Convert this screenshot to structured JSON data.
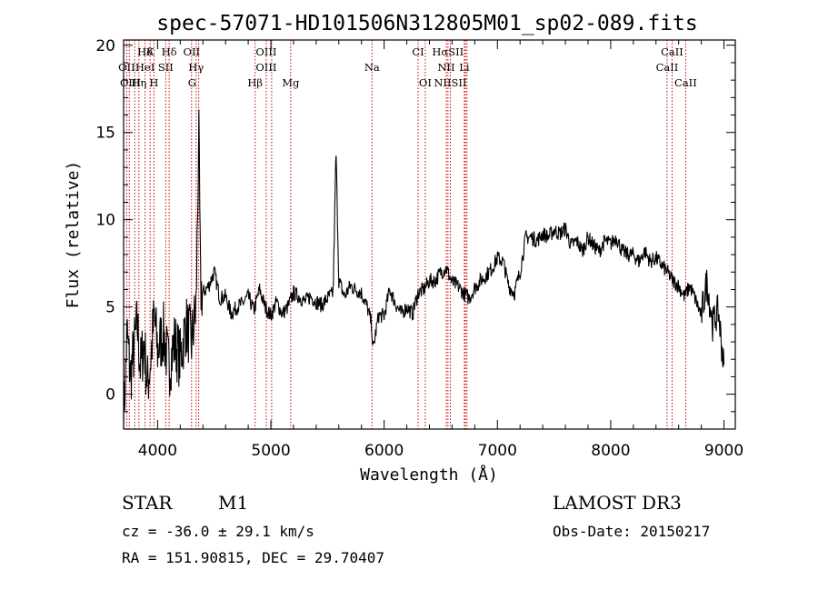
{
  "chart_data": {
    "type": "line",
    "title": "spec-57071-HD101506N312805M01_sp02-089.fits",
    "xlabel": "Wavelength (Å)",
    "ylabel": "Flux (relative)",
    "xlim": [
      3700,
      9100
    ],
    "ylim": [
      -2,
      20.3
    ],
    "x_ticks": [
      4000,
      5000,
      6000,
      7000,
      8000,
      9000
    ],
    "y_ticks": [
      0,
      5,
      10,
      15,
      20
    ],
    "grid": false,
    "line_color": "#000000",
    "marker_color": "#cc0000",
    "spectral_lines": [
      {
        "name": "Hδ",
        "x": 3889,
        "row": 0
      },
      {
        "name": "K",
        "x": 3934,
        "row": 0
      },
      {
        "name": "Hδ",
        "x": 4102,
        "row": 0
      },
      {
        "name": "OII",
        "x": 4300,
        "row": 0
      },
      {
        "name": "OIII",
        "x": 4959,
        "row": 0
      },
      {
        "name": "CI",
        "x": 6300,
        "row": 0
      },
      {
        "name": "HαSII",
        "x": 6563,
        "row": 0
      },
      {
        "name": "CaII",
        "x": 8542,
        "row": 0
      },
      {
        "name": "OII",
        "x": 3727,
        "row": 1
      },
      {
        "name": "HeI",
        "x": 3889,
        "row": 1
      },
      {
        "name": "SII",
        "x": 4072,
        "row": 1
      },
      {
        "name": "Hγ",
        "x": 4340,
        "row": 1
      },
      {
        "name": "OIII",
        "x": 4959,
        "row": 1
      },
      {
        "name": "Na",
        "x": 5893,
        "row": 1
      },
      {
        "name": "NII",
        "x": 6548,
        "row": 1
      },
      {
        "name": "Li",
        "x": 6708,
        "row": 1
      },
      {
        "name": "CaII",
        "x": 8498,
        "row": 1
      },
      {
        "name": "OIII",
        "x": 3760,
        "row": 2
      },
      {
        "name": "Hη",
        "x": 3835,
        "row": 2
      },
      {
        "name": "H",
        "x": 3968,
        "row": 2
      },
      {
        "name": "G",
        "x": 4305,
        "row": 2
      },
      {
        "name": "Hβ",
        "x": 4861,
        "row": 2
      },
      {
        "name": "Mg",
        "x": 5175,
        "row": 2
      },
      {
        "name": "OI",
        "x": 6363,
        "row": 2
      },
      {
        "name": "NIISII",
        "x": 6584,
        "row": 2
      },
      {
        "name": "CaII",
        "x": 8662,
        "row": 2
      }
    ],
    "marker_positions": [
      3727,
      3750,
      3798,
      3835,
      3889,
      3934,
      3968,
      4072,
      4102,
      4300,
      4340,
      4363,
      4861,
      4959,
      5007,
      5175,
      5893,
      6300,
      6363,
      6548,
      6563,
      6584,
      6708,
      6717,
      6731,
      8498,
      8542,
      8662
    ],
    "spectrum": {
      "x": [
        3700,
        3730,
        3760,
        3790,
        3820,
        3850,
        3880,
        3910,
        3940,
        3970,
        4000,
        4050,
        4100,
        4150,
        4200,
        4250,
        4300,
        4340,
        4363,
        4380,
        4400,
        4450,
        4500,
        4550,
        4600,
        4650,
        4700,
        4750,
        4800,
        4850,
        4900,
        4950,
        5000,
        5050,
        5100,
        5150,
        5200,
        5250,
        5300,
        5350,
        5400,
        5450,
        5500,
        5550,
        5575,
        5600,
        5650,
        5700,
        5750,
        5800,
        5850,
        5890,
        5900,
        5950,
        6000,
        6050,
        6100,
        6150,
        6200,
        6250,
        6300,
        6350,
        6400,
        6450,
        6500,
        6550,
        6600,
        6650,
        6700,
        6750,
        6800,
        6850,
        6900,
        6950,
        7000,
        7050,
        7100,
        7150,
        7200,
        7250,
        7300,
        7350,
        7400,
        7450,
        7500,
        7550,
        7600,
        7650,
        7700,
        7750,
        7800,
        7850,
        7900,
        7950,
        8000,
        8050,
        8100,
        8150,
        8200,
        8250,
        8300,
        8350,
        8400,
        8450,
        8500,
        8550,
        8600,
        8650,
        8700,
        8750,
        8800,
        8850,
        8900,
        8950,
        9000
      ],
      "y": [
        -1.5,
        3.5,
        1.0,
        2.5,
        4.0,
        1.5,
        3.0,
        0.5,
        2.0,
        4.5,
        2.5,
        3.5,
        1.5,
        3.0,
        2.0,
        4.0,
        3.0,
        5.0,
        15.0,
        6.0,
        5.8,
        6.2,
        7.0,
        5.5,
        5.6,
        4.6,
        5.0,
        5.2,
        5.6,
        4.8,
        6.0,
        5.0,
        4.5,
        5.3,
        4.6,
        5.0,
        5.8,
        5.6,
        5.3,
        5.6,
        5.3,
        5.1,
        5.5,
        5.8,
        14.0,
        6.5,
        5.6,
        6.2,
        6.0,
        5.8,
        5.0,
        4.0,
        2.5,
        4.5,
        4.5,
        6.0,
        5.2,
        4.6,
        5.0,
        4.6,
        5.8,
        6.0,
        6.5,
        6.5,
        7.0,
        7.2,
        6.4,
        6.2,
        5.8,
        5.5,
        6.1,
        6.5,
        6.8,
        7.2,
        7.8,
        7.6,
        6.2,
        5.8,
        7.0,
        9.0,
        9.0,
        8.8,
        9.2,
        9.0,
        9.4,
        9.2,
        9.5,
        8.5,
        8.8,
        8.2,
        9.0,
        8.5,
        8.2,
        8.8,
        8.6,
        9.0,
        8.2,
        8.0,
        8.0,
        7.6,
        8.2,
        7.6,
        7.8,
        7.4,
        7.0,
        6.5,
        6.2,
        5.6,
        6.2,
        5.4,
        4.5,
        6.5,
        4.0,
        4.8,
        1.5
      ]
    }
  },
  "footer": {
    "object_class": "STAR",
    "subclass": "M1",
    "survey": "LAMOST DR3",
    "redshift_text": "cz = -36.0 ± 29.1 km/s",
    "obs_date_text": "Obs-Date: 20150217",
    "coords_text": "RA = 151.90815, DEC =  29.70407"
  }
}
